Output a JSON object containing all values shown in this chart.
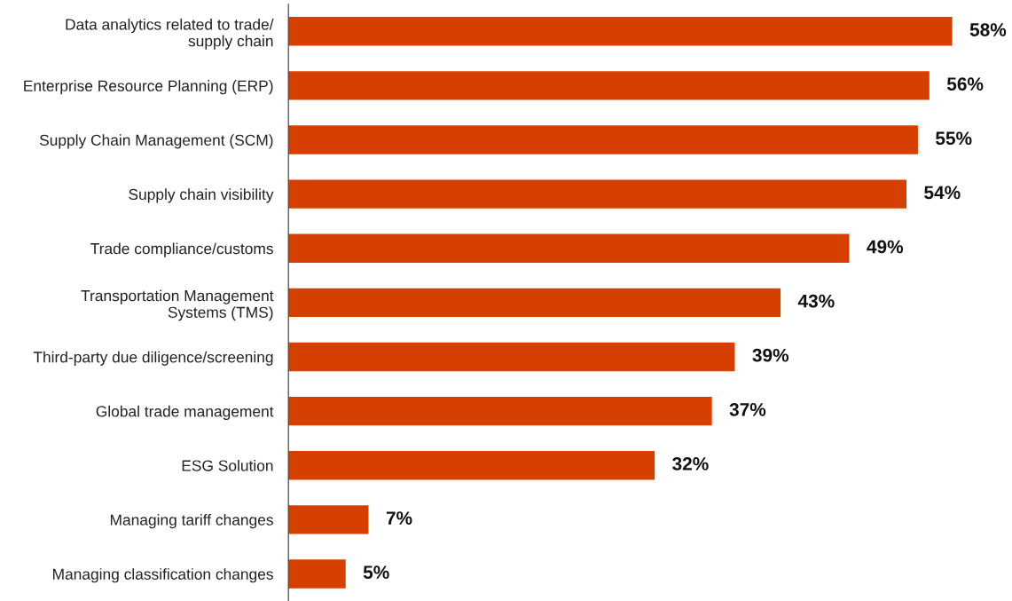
{
  "chart_data": {
    "type": "bar",
    "orientation": "horizontal",
    "categories": [
      "Data analytics related to trade/\nsupply chain",
      "Enterprise Resource Planning (ERP)",
      "Supply Chain Management (SCM)",
      "Supply chain visibility",
      "Trade compliance/customs",
      "Transportation Management\nSystems (TMS)",
      "Third-party due diligence/screening",
      "Global trade management",
      "ESG Solution",
      "Managing tariff changes",
      "Managing classification changes"
    ],
    "values": [
      58,
      56,
      55,
      54,
      49,
      43,
      39,
      37,
      32,
      7,
      5
    ],
    "value_labels": [
      "58%",
      "56%",
      "55%",
      "54%",
      "49%",
      "43%",
      "39%",
      "37%",
      "32%",
      "7%",
      "5%"
    ],
    "color": "#d54000"
  }
}
